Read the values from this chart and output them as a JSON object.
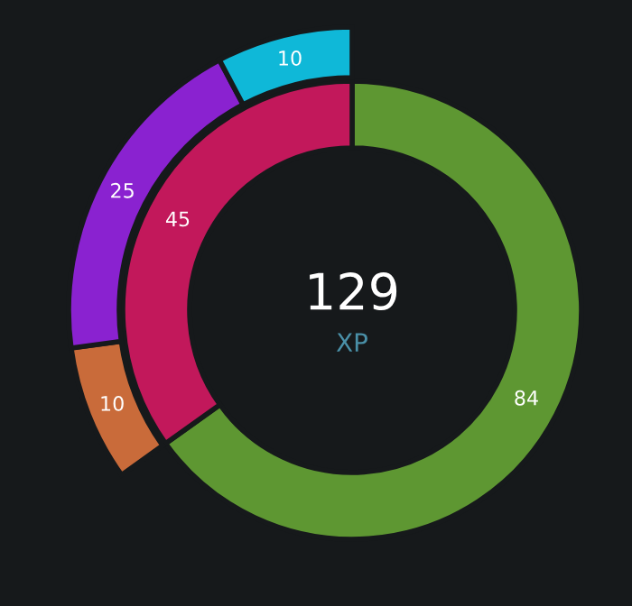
{
  "chart_data": {
    "type": "donut",
    "series": [
      {
        "values": [
          84,
          45
        ],
        "colors": [
          "#5e9732",
          "#c2185b"
        ],
        "value_labels": [
          "84",
          "45"
        ]
      },
      {
        "values": [
          null,
          10,
          25,
          10
        ],
        "colors": [
          null,
          "#c96b3a",
          "#8a22d0",
          "#0fb8d8"
        ],
        "value_labels": [
          null,
          "10",
          "25",
          "10"
        ]
      }
    ],
    "annotations": [
      "129",
      "XP"
    ]
  }
}
